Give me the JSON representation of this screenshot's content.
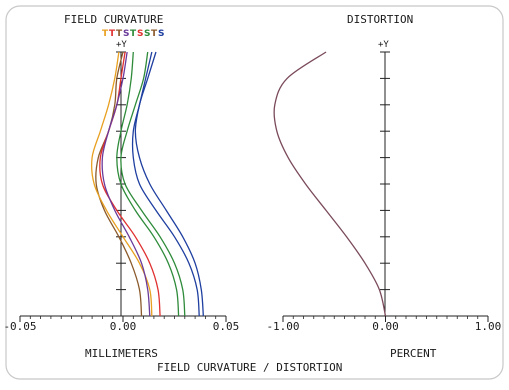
{
  "figure_title": "FIELD CURVATURE / DISTORTION",
  "chart_data": [
    {
      "type": "line",
      "title": "FIELD CURVATURE",
      "xlabel": "MILLIMETERS",
      "ylabel": "+Y",
      "xlim": [
        -0.05,
        0.05
      ],
      "ylim": [
        0,
        1
      ],
      "xticks": [
        "-0.05",
        "0.00",
        "0.05"
      ],
      "legend": [
        {
          "text": "T",
          "color": "#e8a020"
        },
        {
          "text": "T",
          "color": "#e03030"
        },
        {
          "text": "T",
          "color": "#8b5a2b"
        },
        {
          "text": "S",
          "color": "#6a3a9a"
        },
        {
          "text": "T",
          "color": "#2e8b3a"
        },
        {
          "text": "S",
          "color": "#e03030"
        },
        {
          "text": "S",
          "color": "#2e8b3a"
        },
        {
          "text": "T",
          "color": "#8b5a2b"
        },
        {
          "text": "S",
          "color": "#1f3fa0"
        }
      ],
      "y": [
        0,
        0.1,
        0.2,
        0.3,
        0.4,
        0.5,
        0.6,
        0.7,
        0.8,
        0.9,
        1.0
      ],
      "series": [
        {
          "color": "#8b5a2b",
          "x": [
            0.009,
            0.008,
            0.004,
            -0.002,
            -0.009,
            -0.013,
            -0.012,
            -0.007,
            -0.004,
            -0.003,
            0.0
          ]
        },
        {
          "color": "#e8a020",
          "x": [
            0.014,
            0.013,
            0.008,
            0.0,
            -0.008,
            -0.014,
            -0.015,
            -0.011,
            -0.007,
            -0.004,
            -0.002
          ]
        },
        {
          "color": "#e03030",
          "x": [
            0.018,
            0.017,
            0.013,
            0.006,
            -0.003,
            -0.01,
            -0.011,
            -0.007,
            -0.003,
            -0.001,
            0.001
          ]
        },
        {
          "color": "#6a3a9a",
          "x": [
            0.013,
            0.012,
            0.009,
            0.003,
            -0.004,
            -0.009,
            -0.01,
            -0.007,
            -0.003,
            0.0,
            0.002
          ]
        },
        {
          "color": "#2e8b3a",
          "x": [
            0.027,
            0.026,
            0.022,
            0.015,
            0.006,
            -0.001,
            -0.003,
            -0.001,
            0.002,
            0.004,
            0.005
          ]
        },
        {
          "color": "#2e8b3a",
          "x": [
            0.03,
            0.029,
            0.025,
            0.018,
            0.009,
            0.001,
            -0.001,
            0.002,
            0.006,
            0.01,
            0.012
          ]
        },
        {
          "color": "#1f3fa0",
          "x": [
            0.037,
            0.036,
            0.032,
            0.025,
            0.016,
            0.008,
            0.005,
            0.005,
            0.008,
            0.011,
            0.014
          ]
        },
        {
          "color": "#1f3fa0",
          "x": [
            0.039,
            0.038,
            0.035,
            0.029,
            0.021,
            0.013,
            0.008,
            0.006,
            0.008,
            0.012,
            0.016
          ]
        }
      ]
    },
    {
      "type": "line",
      "title": "DISTORTION",
      "xlabel": "PERCENT",
      "ylabel": "+Y",
      "xlim": [
        -1.0,
        1.0
      ],
      "ylim": [
        0,
        1
      ],
      "xticks": [
        "-1.00",
        "0.00",
        "1.00"
      ],
      "y": [
        0,
        0.1,
        0.2,
        0.3,
        0.4,
        0.5,
        0.6,
        0.7,
        0.8,
        0.9,
        1.0
      ],
      "series": [
        {
          "color": "#7a4a5a",
          "x": [
            0.0,
            -0.06,
            -0.2,
            -0.38,
            -0.58,
            -0.78,
            -0.95,
            -1.06,
            -1.08,
            -0.96,
            -0.58
          ]
        }
      ]
    }
  ]
}
